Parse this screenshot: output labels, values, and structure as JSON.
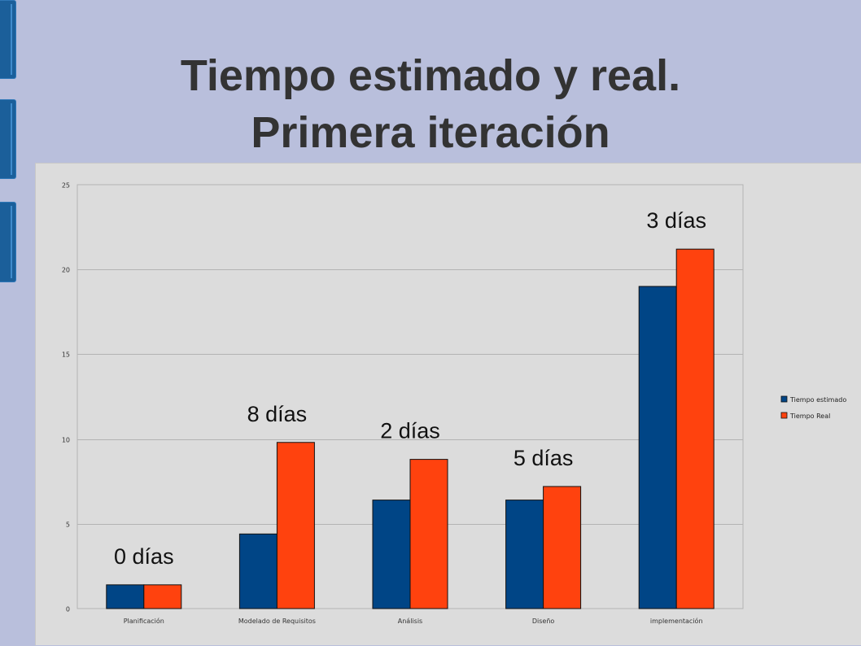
{
  "slide": {
    "title_line1": "Tiempo estimado y real.",
    "title_line2": "Primera iteración"
  },
  "colors": {
    "background": "#b9bfdc",
    "side_tabs": "#1b5f9a",
    "chart_panel": "#dcdcdc",
    "series_estimado": "#004586",
    "series_real": "#ff420e"
  },
  "chart_data": {
    "type": "bar",
    "title": "",
    "xlabel": "",
    "ylabel": "",
    "categories": [
      "Planificación",
      "Modelado de Requisitos",
      "Análisis",
      "Diseño",
      "implementación"
    ],
    "series": [
      {
        "name": "Tiempo estimado",
        "color": "#004586",
        "values": [
          1.4,
          4.4,
          6.4,
          6.4,
          19
        ]
      },
      {
        "name": "Tiempo Real",
        "color": "#ff420e",
        "values": [
          1.4,
          9.8,
          8.8,
          7.2,
          21.2
        ]
      }
    ],
    "annotations": [
      "0 días",
      "8 días",
      "2 días",
      "5 días",
      "3 días"
    ],
    "ylim": [
      0,
      25
    ],
    "yticks": [
      0,
      5,
      10,
      15,
      20,
      25
    ],
    "grid": true,
    "legend_position": "right"
  }
}
